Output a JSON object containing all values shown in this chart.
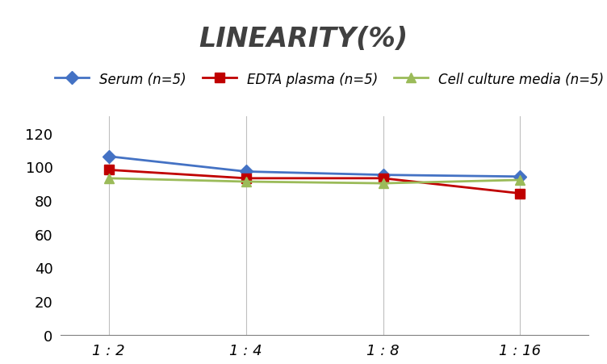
{
  "title": "LINEARITY(%)",
  "x_labels": [
    "1 : 2",
    "1 : 4",
    "1 : 8",
    "1 : 16"
  ],
  "x_positions": [
    0,
    1,
    2,
    3
  ],
  "series": [
    {
      "label": "Serum (n=5)",
      "values": [
        106,
        97,
        95,
        94
      ],
      "color": "#4472C4",
      "marker": "D",
      "marker_facecolor": "#4472C4",
      "linewidth": 2,
      "markersize": 8
    },
    {
      "label": "EDTA plasma (n=5)",
      "values": [
        98,
        93,
        93,
        84
      ],
      "color": "#C00000",
      "marker": "s",
      "marker_facecolor": "#C00000",
      "linewidth": 2,
      "markersize": 8
    },
    {
      "label": "Cell culture media (n=5)",
      "values": [
        93,
        91,
        90,
        92
      ],
      "color": "#9BBB59",
      "marker": "^",
      "marker_facecolor": "#9BBB59",
      "linewidth": 2,
      "markersize": 9
    }
  ],
  "ylim": [
    0,
    130
  ],
  "yticks": [
    0,
    20,
    40,
    60,
    80,
    100,
    120
  ],
  "grid_color": "#BFBFBF",
  "background_color": "#FFFFFF",
  "title_fontsize": 24,
  "legend_fontsize": 12,
  "tick_fontsize": 13
}
